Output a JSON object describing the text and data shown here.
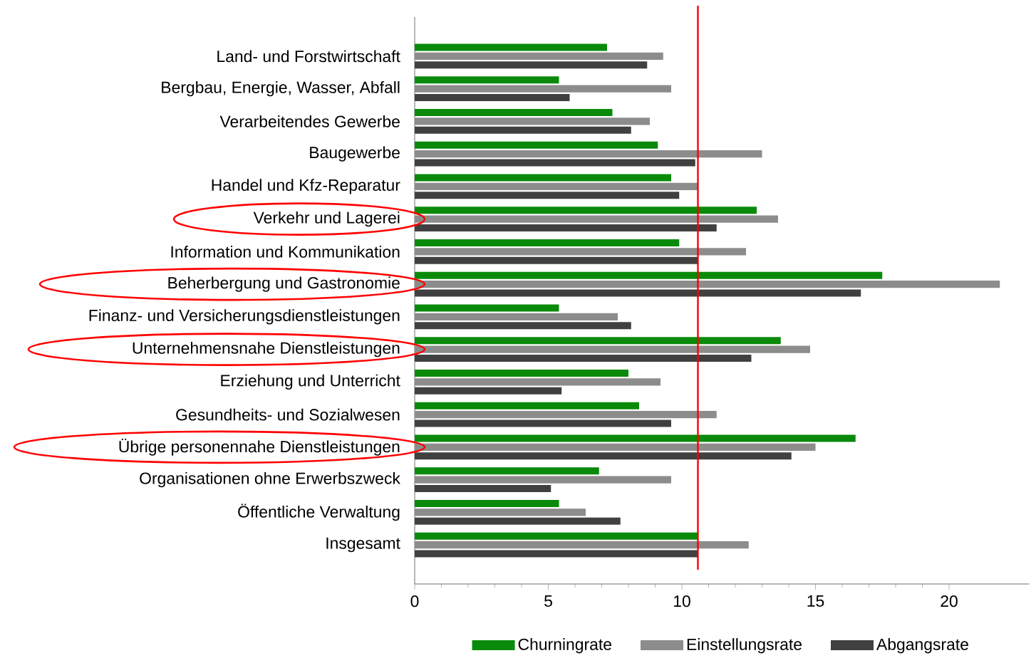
{
  "chart_data": {
    "type": "bar",
    "orientation": "horizontal",
    "categories": [
      "Land- und Forstwirtschaft",
      "Bergbau, Energie, Wasser, Abfall",
      "Verarbeitendes Gewerbe",
      "Baugewerbe",
      "Handel und Kfz-Reparatur",
      "Verkehr und Lagerei",
      "Information und Kommunikation",
      "Beherbergung und Gastronomie",
      "Finanz- und Versicherungsdienstleistungen",
      "Unternehmensnahe Dienstleistungen",
      "Erziehung und Unterricht",
      "Gesundheits- und Sozialwesen",
      "Übrige personennahe Dienstleistungen",
      "Organisationen ohne Erwerbszweck",
      "Öffentliche Verwaltung",
      "Insgesamt"
    ],
    "series": [
      {
        "name": "Churningrate",
        "color": "#0a8a0a",
        "values": [
          7.2,
          5.4,
          7.4,
          9.1,
          9.6,
          12.8,
          9.9,
          17.5,
          5.4,
          13.7,
          8.0,
          8.4,
          16.5,
          6.9,
          5.4,
          10.6
        ]
      },
      {
        "name": "Einstellungsrate",
        "color": "#8c8c8c",
        "values": [
          9.3,
          9.6,
          8.8,
          13.0,
          10.6,
          13.6,
          12.4,
          21.9,
          7.6,
          14.8,
          9.2,
          11.3,
          15.0,
          9.6,
          6.4,
          12.5
        ]
      },
      {
        "name": "Abgangsrate",
        "color": "#404040",
        "values": [
          8.7,
          5.8,
          8.1,
          10.5,
          9.9,
          11.3,
          10.6,
          16.7,
          8.1,
          12.6,
          5.5,
          9.6,
          14.1,
          5.1,
          7.7,
          10.6
        ]
      }
    ],
    "xlim": [
      0,
      23
    ],
    "xticks": [
      0,
      5,
      10,
      15,
      20
    ],
    "ref_lines": [
      {
        "axis": "x",
        "value": 10.6,
        "color": "#ff0000"
      }
    ],
    "legend": "bottom"
  }
}
